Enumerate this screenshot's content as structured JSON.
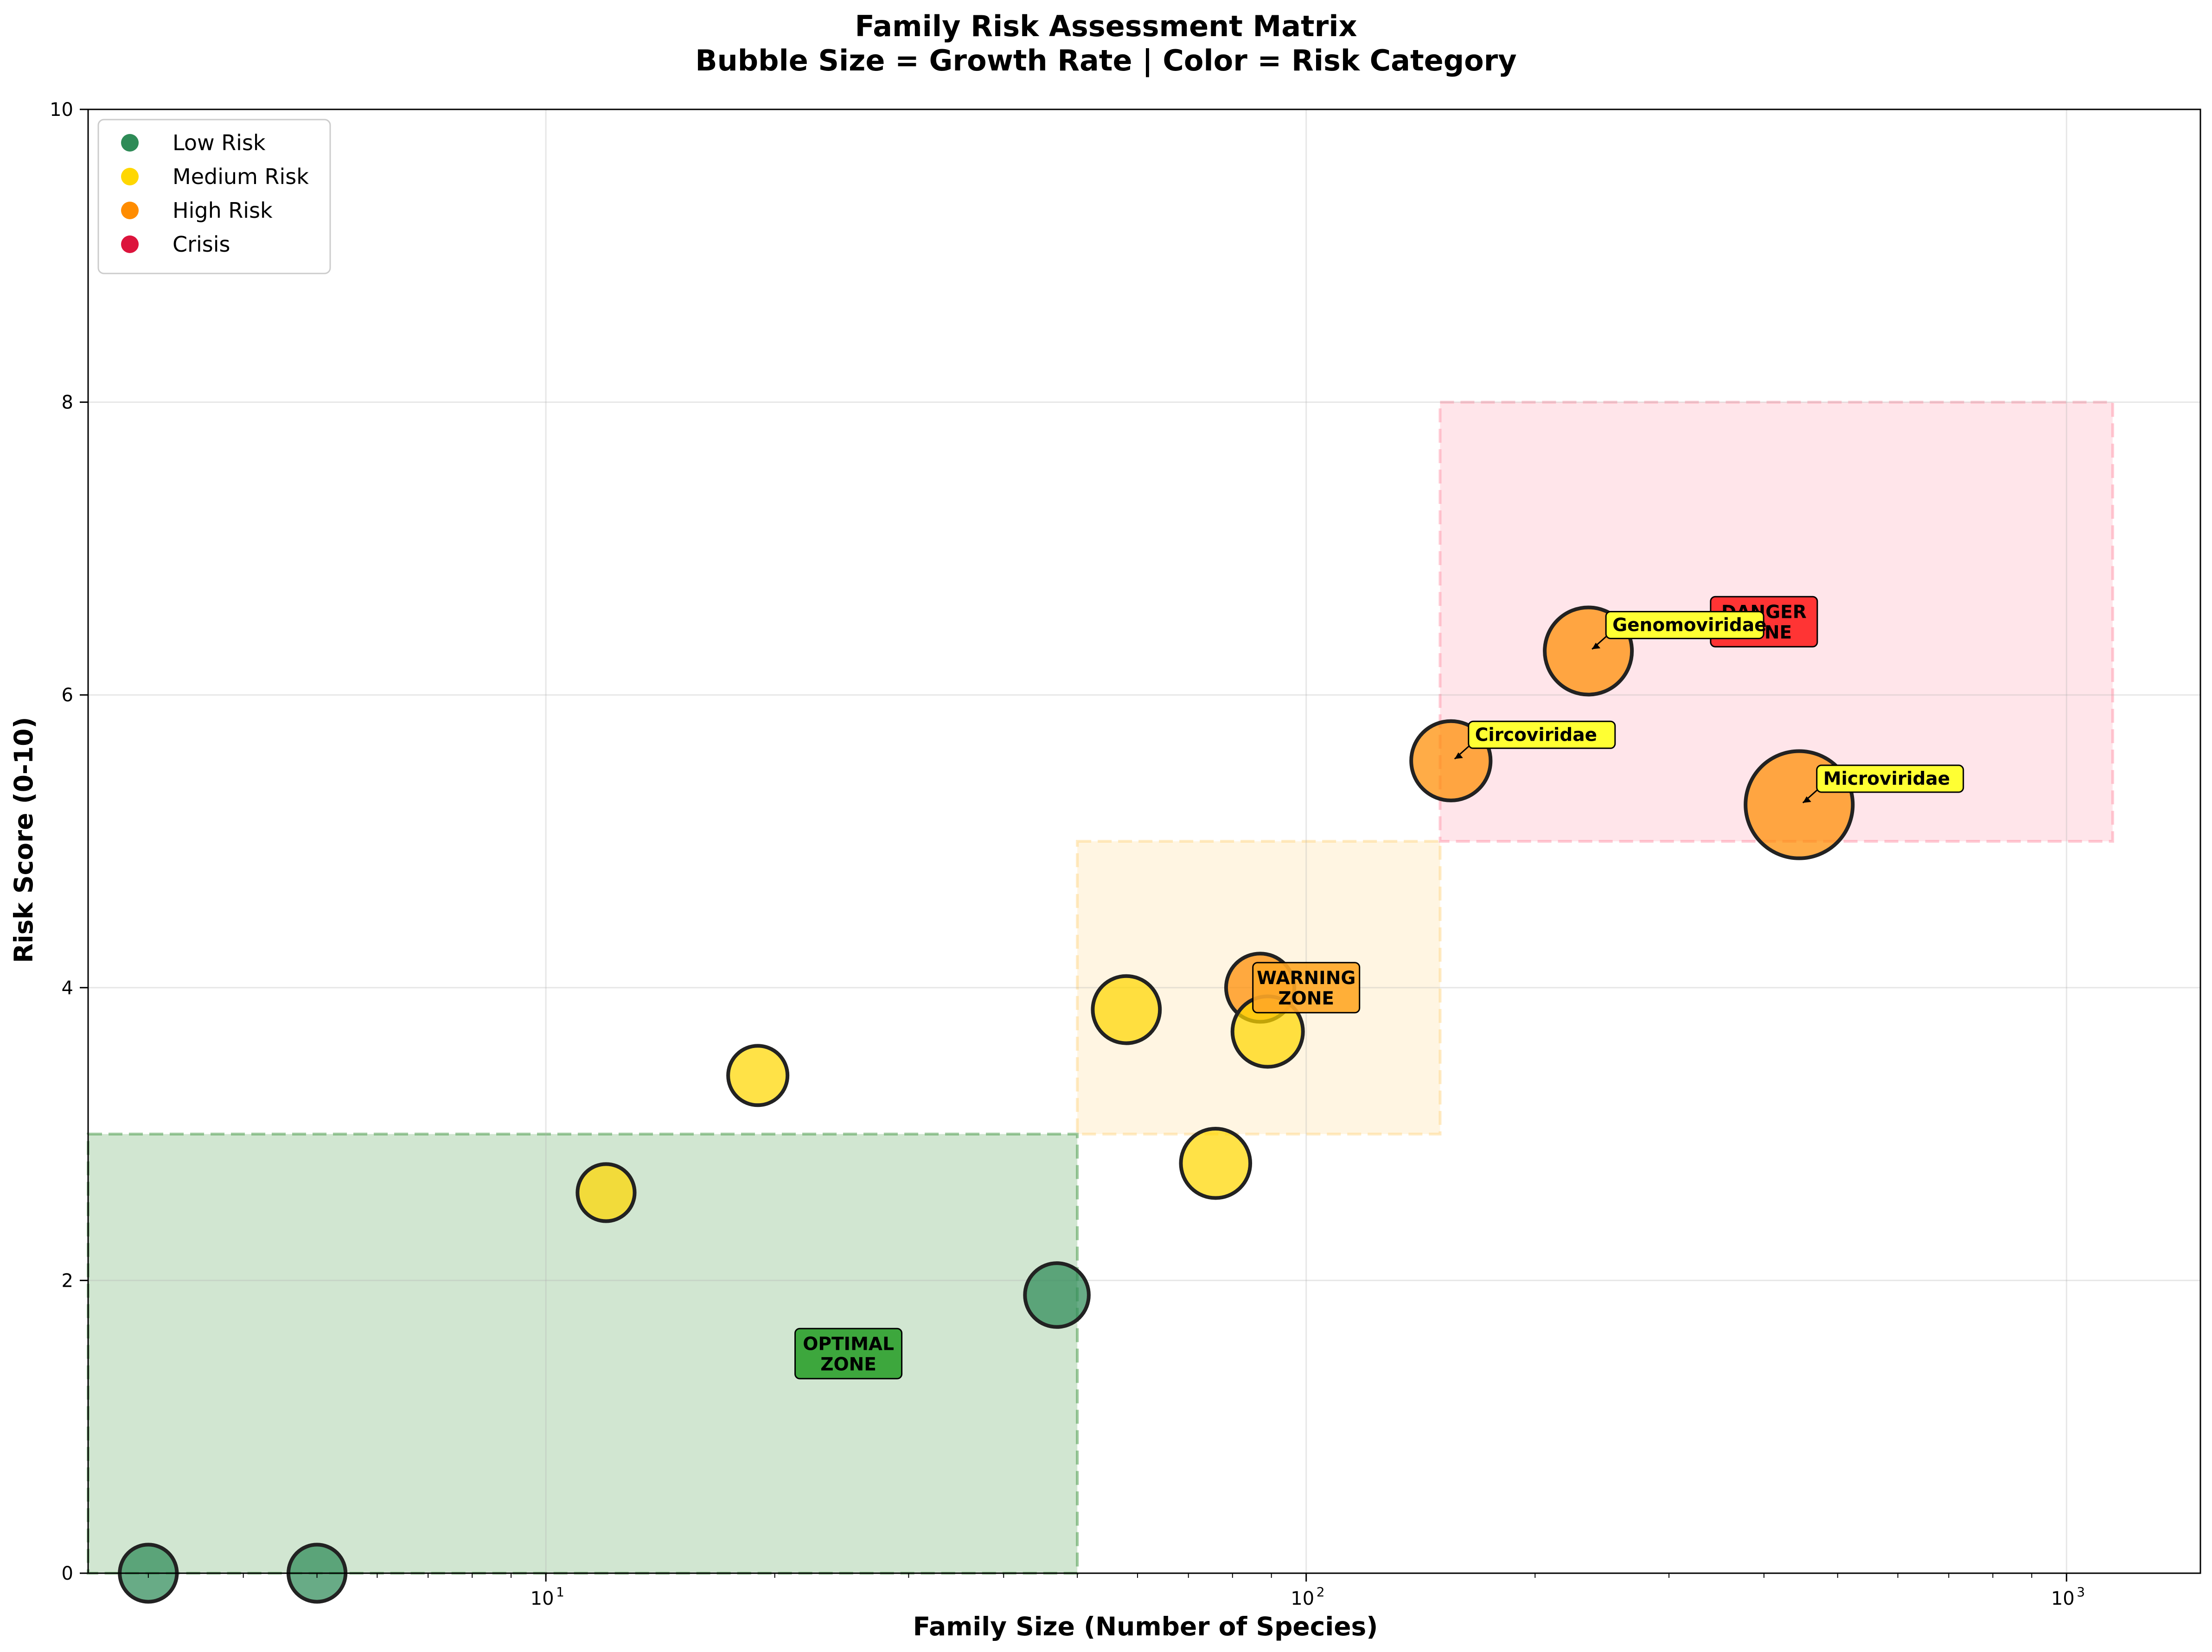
{
  "chart_data": {
    "type": "scatter",
    "title": "Family Risk Assessment Matrix",
    "subtitle": "Bubble Size = Growth Rate | Color = Risk Category",
    "xlabel": "Family Size (Number of Species)",
    "ylabel": "Risk Score (0-10)",
    "x_scale": "log",
    "xlim": [
      2.5,
      1500
    ],
    "ylim": [
      0,
      10
    ],
    "x_ticks": [
      {
        "base": "10",
        "exp": "1",
        "value": 10
      },
      {
        "base": "10",
        "exp": "2",
        "value": 100
      },
      {
        "base": "10",
        "exp": "3",
        "value": 1000
      }
    ],
    "y_ticks": [
      0,
      2,
      4,
      6,
      8,
      10
    ],
    "grid": true,
    "legend_position": "top-left",
    "legend": [
      {
        "label": "Low Risk",
        "color": "#2e8b57"
      },
      {
        "label": "Medium Risk",
        "color": "#ffd700"
      },
      {
        "label": "High Risk",
        "color": "#ff8c00"
      },
      {
        "label": "Crisis",
        "color": "#dc143c"
      }
    ],
    "zones": [
      {
        "label_lines": [
          "OPTIMAL",
          "ZONE"
        ],
        "x0": 2.5,
        "x1": 50,
        "y0": 0,
        "y1": 3,
        "fill": "#2e8b2e",
        "label_fill": "#2ca02c",
        "label_x": 25,
        "label_y": 1.5
      },
      {
        "label_lines": [
          "WARNING",
          "ZONE"
        ],
        "x0": 50,
        "x1": 150,
        "y0": 3,
        "y1": 5,
        "fill": "#ffd27a",
        "label_fill": "#ffa726",
        "label_x": 100,
        "label_y": 4.0
      },
      {
        "label_lines": [
          "DANGER",
          "ZONE"
        ],
        "x0": 150,
        "x1": 1150,
        "y0": 5,
        "y1": 8,
        "fill": "#ff8aa0",
        "label_fill": "#ff2020",
        "label_x": 400,
        "label_y": 6.5
      }
    ],
    "points": [
      {
        "x": 3,
        "y": 0.0,
        "risk": "Low Risk",
        "size": 0.18
      },
      {
        "x": 5,
        "y": 0.0,
        "risk": "Low Risk",
        "size": 0.18
      },
      {
        "x": 12,
        "y": 2.6,
        "risk": "Medium Risk",
        "size": 0.18
      },
      {
        "x": 19,
        "y": 3.4,
        "risk": "Medium Risk",
        "size": 0.2
      },
      {
        "x": 47,
        "y": 1.9,
        "risk": "Low Risk",
        "size": 0.24
      },
      {
        "x": 58,
        "y": 3.85,
        "risk": "Medium Risk",
        "size": 0.27
      },
      {
        "x": 76,
        "y": 2.8,
        "risk": "Medium Risk",
        "size": 0.29
      },
      {
        "x": 87,
        "y": 4.0,
        "risk": "High Risk",
        "size": 0.28
      },
      {
        "x": 89,
        "y": 3.7,
        "risk": "Medium Risk",
        "size": 0.3
      },
      {
        "x": 155,
        "y": 5.55,
        "risk": "High Risk",
        "size": 0.38,
        "name": "Circoviridae"
      },
      {
        "x": 235,
        "y": 6.3,
        "risk": "High Risk",
        "size": 0.45,
        "name": "Genomoviridae"
      },
      {
        "x": 445,
        "y": 5.25,
        "risk": "High Risk",
        "size": 0.63,
        "name": "Microviridae"
      }
    ]
  }
}
